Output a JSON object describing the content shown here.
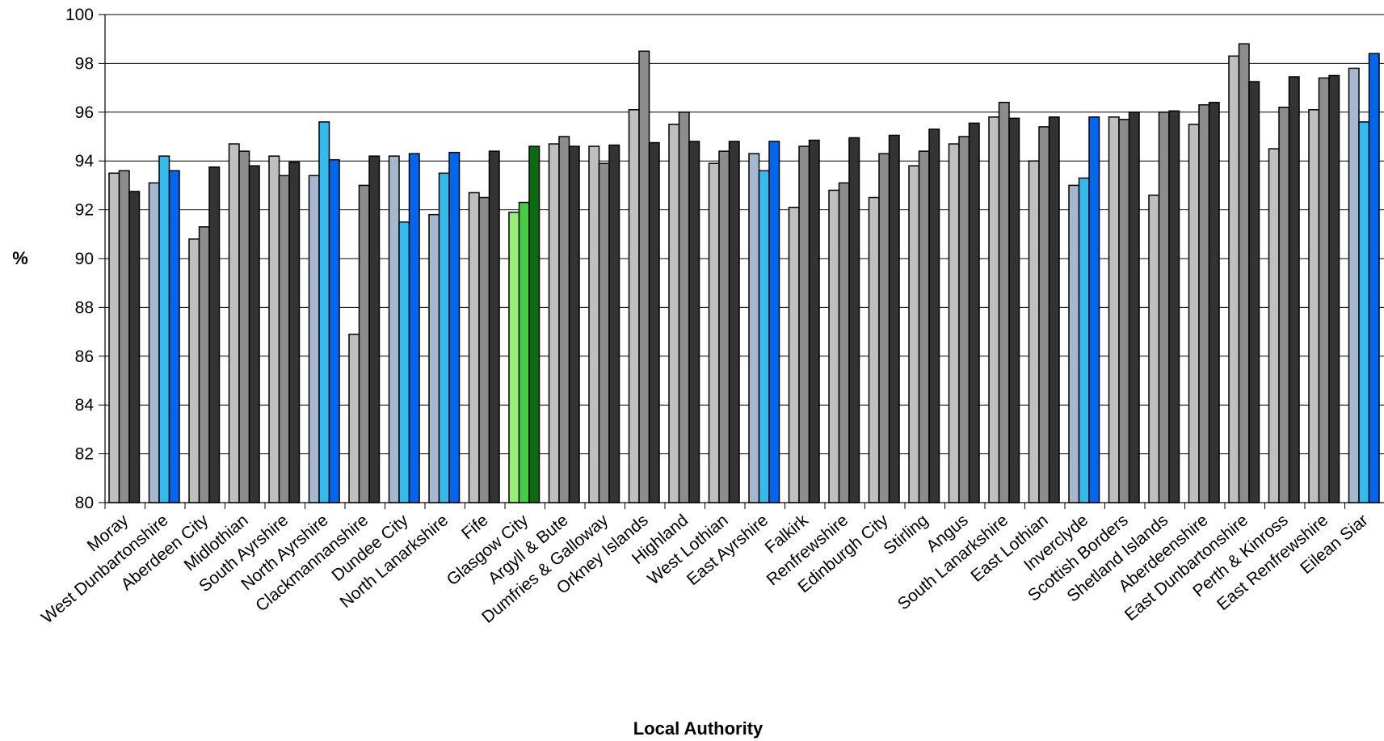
{
  "chart_data": {
    "type": "bar",
    "title": "",
    "xlabel": "Local Authority",
    "ylabel": "%",
    "ylim": [
      80,
      100
    ],
    "yticks": [
      80,
      82,
      84,
      86,
      88,
      90,
      92,
      94,
      96,
      98,
      100
    ],
    "grid": "horizontal",
    "legend": "none",
    "categories": [
      "Moray",
      "West Dunbartonshire",
      "Aberdeen City",
      "Midlothian",
      "South Ayrshire",
      "North Ayrshire",
      "Clackmannanshire",
      "Dundee City",
      "North Lanarkshire",
      "Fife",
      "Glasgow City",
      "Argyll & Bute",
      "Dumfries & Galloway",
      "Orkney Islands",
      "Highland",
      "West Lothian",
      "East Ayrshire",
      "Falkirk",
      "Renfrewshire",
      "Edinburgh City",
      "Stirling",
      "Angus",
      "South Lanarkshire",
      "East Lothian",
      "Inverclyde",
      "Scottish Borders",
      "Shetland Islands",
      "Aberdeenshire",
      "East Dunbartonshire",
      "Perth & Kinross",
      "East Renfrewshire",
      "Eilean Siar"
    ],
    "series": [
      {
        "values": [
          93.5,
          93.1,
          90.8,
          94.7,
          94.2,
          93.4,
          86.9,
          94.2,
          91.8,
          92.7,
          91.9,
          94.7,
          94.6,
          96.1,
          95.5,
          93.9,
          94.3,
          92.1,
          92.8,
          92.5,
          93.8,
          94.7,
          95.8,
          94.0,
          93.0,
          95.8,
          92.6,
          95.5,
          98.3,
          94.5,
          96.1,
          97.8
        ]
      },
      {
        "values": [
          93.6,
          94.2,
          91.3,
          94.4,
          93.4,
          95.6,
          93.0,
          91.5,
          93.5,
          92.5,
          92.3,
          95.0,
          93.9,
          98.5,
          96.0,
          94.4,
          93.6,
          94.6,
          93.1,
          94.3,
          94.4,
          95.0,
          96.4,
          95.4,
          93.3,
          95.7,
          96.0,
          96.3,
          98.8,
          96.2,
          97.4,
          95.6
        ]
      },
      {
        "values": [
          92.75,
          93.6,
          93.75,
          93.8,
          93.95,
          94.05,
          94.2,
          94.3,
          94.35,
          94.4,
          94.6,
          94.6,
          94.65,
          94.75,
          94.8,
          94.8,
          94.8,
          94.85,
          94.95,
          95.05,
          95.3,
          95.55,
          95.75,
          95.8,
          95.8,
          96.0,
          96.05,
          96.4,
          97.25,
          97.45,
          97.5,
          98.4
        ]
      }
    ],
    "colors": {
      "grey": [
        "#bfbfbf",
        "#8c8c8c",
        "#333333"
      ],
      "blue": [
        "#a6b8d0",
        "#33bbee",
        "#0066ee"
      ],
      "green": [
        "#99ee77",
        "#44cc44",
        "#0b6b11"
      ],
      "blue_categories": [
        "West Dunbartonshire",
        "North Ayrshire",
        "Dundee City",
        "North Lanarkshire",
        "East Ayrshire",
        "Inverclyde",
        "Eilean Siar"
      ],
      "green_categories": [
        "Glasgow City"
      ],
      "grid": "#000000",
      "bar_border": "#000000"
    }
  }
}
